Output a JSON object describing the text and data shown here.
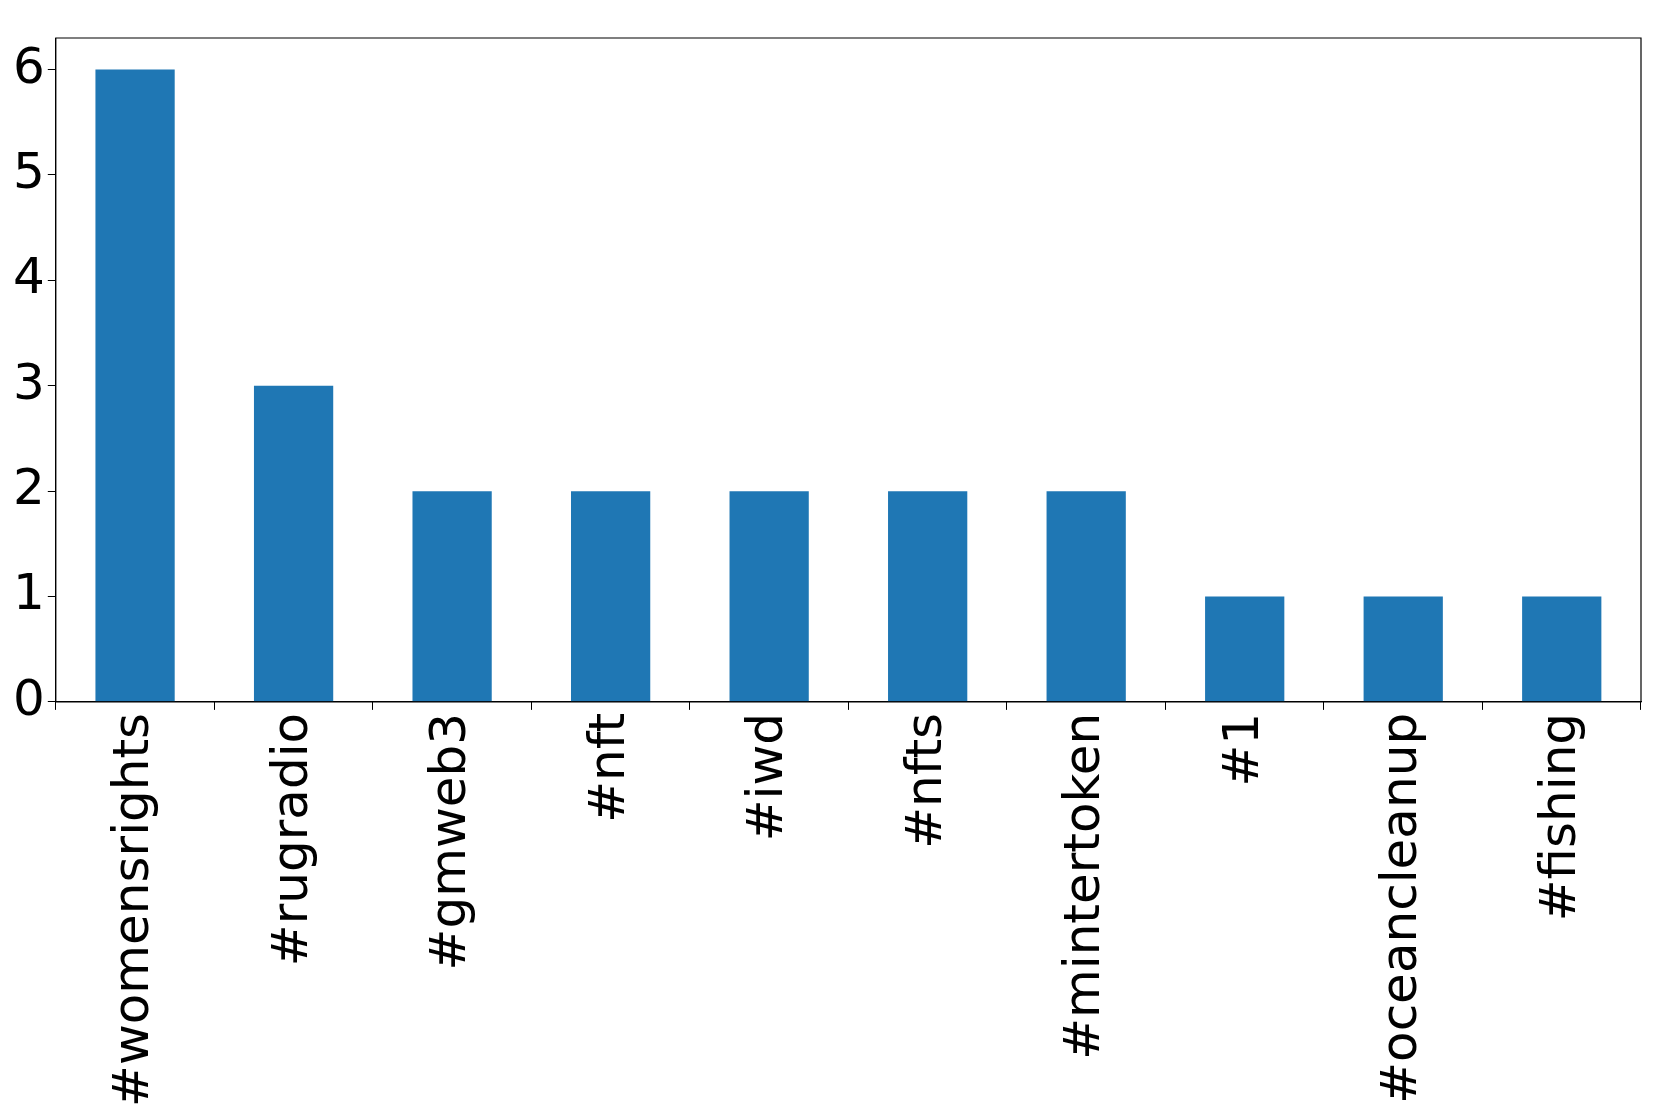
{
  "chart_data": {
    "type": "bar",
    "categories": [
      "#womensrights",
      "#rugradio",
      "#gmweb3",
      "#nft",
      "#iwd",
      "#nfts",
      "#mintertoken",
      "#1",
      "#oceancleanup",
      "#fishing"
    ],
    "values": [
      6,
      3,
      2,
      2,
      2,
      2,
      2,
      1,
      1,
      1
    ],
    "color": "#1f77b4",
    "ylim": [
      0,
      6.3
    ],
    "yticks": [
      0,
      1,
      2,
      3,
      4,
      5,
      6
    ]
  }
}
